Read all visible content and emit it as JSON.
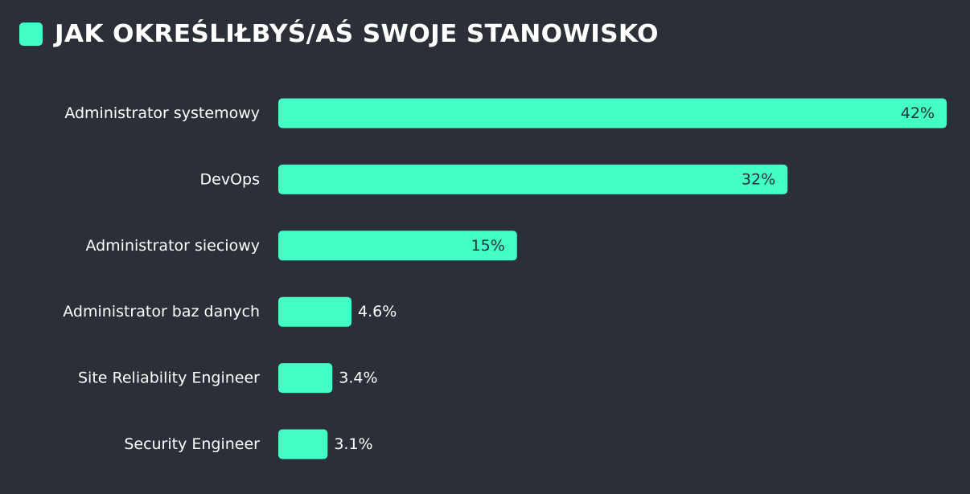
{
  "chart_data": {
    "type": "bar",
    "orientation": "horizontal",
    "title": "JAK OKREŚLIŁBYŚ/AŚ SWOJE STANOWISKO",
    "categories": [
      "Administrator systemowy",
      "DevOps",
      "Administrator sieciowy",
      "Administrator baz danych",
      "Site Reliability Engineer",
      "Security Engineer"
    ],
    "values": [
      42,
      32,
      15,
      4.6,
      3.4,
      3.1
    ],
    "value_labels": [
      "42%",
      "32%",
      "15%",
      "4.6%",
      "3.4%",
      "3.1%"
    ],
    "unit": "%",
    "xlim": [
      0,
      42
    ],
    "grid": false,
    "legend": "none"
  },
  "colors": {
    "background": "#2b2f37",
    "bar": "#43ffc6",
    "text": "#ffffff",
    "accent": "#43ffc6"
  }
}
